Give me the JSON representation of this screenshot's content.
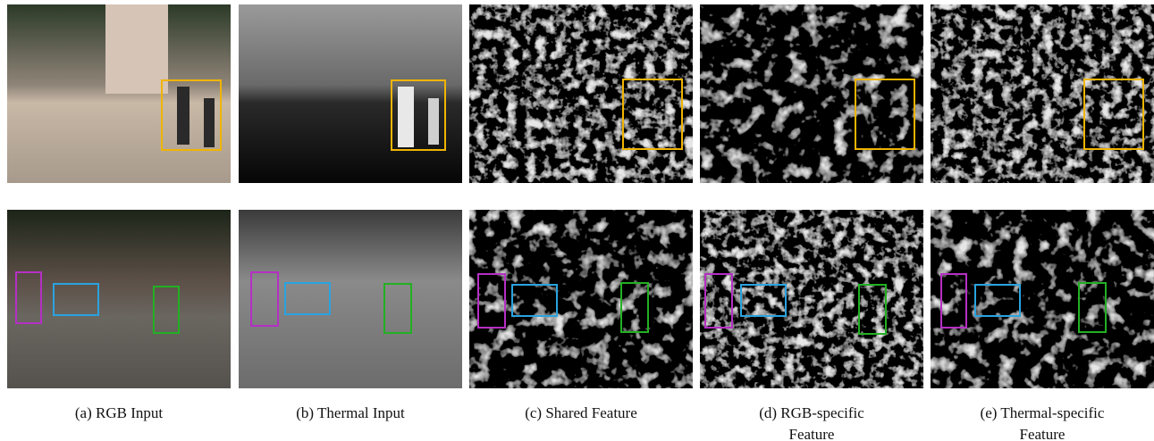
{
  "captions": [
    {
      "lines": [
        "(a) RGB Input"
      ]
    },
    {
      "lines": [
        "(b) Thermal Input"
      ]
    },
    {
      "lines": [
        "(c) Shared Feature"
      ]
    },
    {
      "lines": [
        "(d) RGB-specific",
        "Feature"
      ]
    },
    {
      "lines": [
        "(e) Thermal-specific",
        "Feature"
      ]
    }
  ]
}
